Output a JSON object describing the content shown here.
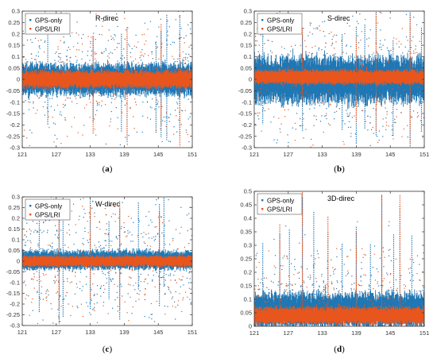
{
  "colors": {
    "gps_only": "#1f77b4",
    "gps_lri": "#e8561e",
    "axis": "#333333",
    "grid": "#d9d9d9"
  },
  "chart_data": [
    {
      "type": "scatter",
      "panel": "a",
      "caption": "(a)",
      "annotation": "R-direc",
      "legend": [
        "GPS-only",
        "GPS/LRI"
      ],
      "legend_position": "top-left",
      "xlim": [
        121,
        151
      ],
      "ylim": [
        -0.3,
        0.3
      ],
      "x_ticks": [
        121,
        127,
        133,
        139,
        145,
        151
      ],
      "y_ticks": [
        -0.3,
        -0.25,
        -0.2,
        -0.15,
        -0.1,
        -0.05,
        0,
        0.05,
        0.1,
        0.15,
        0.2,
        0.25,
        0.3
      ],
      "grid": false,
      "series": [
        {
          "name": "GPS-only",
          "center": 0.0,
          "band": 0.055
        },
        {
          "name": "GPS/LRI",
          "center": 0.0,
          "band": 0.03
        }
      ],
      "spikes_x": [
        125.5,
        133.5,
        138.5,
        139.5,
        144.6,
        145.5,
        146.5,
        148.8
      ]
    },
    {
      "type": "scatter",
      "panel": "b",
      "caption": "(b)",
      "annotation": "S-direc",
      "legend": [
        "GPS-only",
        "GPS/LRI"
      ],
      "legend_position": "top-left",
      "xlim": [
        121,
        151
      ],
      "ylim": [
        -0.3,
        0.3
      ],
      "x_ticks": [
        121,
        127,
        133,
        139,
        145,
        151
      ],
      "y_ticks": [
        -0.3,
        -0.25,
        -0.2,
        -0.15,
        -0.1,
        -0.05,
        0,
        0.05,
        0.1,
        0.15,
        0.2,
        0.25,
        0.3
      ],
      "grid": false,
      "series": [
        {
          "name": "GPS-only",
          "center": 0.0,
          "band": 0.08
        },
        {
          "name": "GPS/LRI",
          "center": 0.01,
          "band": 0.025
        }
      ],
      "spikes_x": [
        122.5,
        129.5,
        136.5,
        139.0,
        140.5,
        142.5,
        145.5,
        148.5,
        150.5
      ]
    },
    {
      "type": "scatter",
      "panel": "c",
      "caption": "(c)",
      "annotation": "W-direc",
      "legend": [
        "GPS-only",
        "GPS/LRI"
      ],
      "legend_position": "top-left",
      "xlim": [
        121,
        151
      ],
      "ylim": [
        -0.3,
        0.3
      ],
      "x_ticks": [
        121,
        127,
        133,
        139,
        145,
        151
      ],
      "y_ticks": [
        -0.3,
        -0.25,
        -0.2,
        -0.15,
        -0.1,
        -0.05,
        0,
        0.05,
        0.1,
        0.15,
        0.2,
        0.25,
        0.3
      ],
      "grid": false,
      "series": [
        {
          "name": "GPS-only",
          "center": 0.005,
          "band": 0.035
        },
        {
          "name": "GPS/LRI",
          "center": 0.0,
          "band": 0.02
        }
      ],
      "spikes_x": [
        124.0,
        127.5,
        128.2,
        133.0,
        136.3,
        138.2,
        141.5,
        145.2,
        146.0
      ]
    },
    {
      "type": "scatter",
      "panel": "d",
      "caption": "(d)",
      "annotation": "3D-direc",
      "legend": [
        "GPS-only",
        "GPS/LRI"
      ],
      "legend_position": "top-left",
      "xlim": [
        121,
        151
      ],
      "ylim": [
        0,
        0.5
      ],
      "x_ticks": [
        121,
        127,
        133,
        139,
        145,
        151
      ],
      "y_ticks": [
        0,
        0.05,
        0.1,
        0.15,
        0.2,
        0.25,
        0.3,
        0.35,
        0.4,
        0.45,
        0.5
      ],
      "grid": false,
      "series": [
        {
          "name": "GPS-only",
          "center": 0.06,
          "band": 0.05
        },
        {
          "name": "GPS/LRI",
          "center": 0.04,
          "band": 0.025
        }
      ],
      "spikes_x": [
        122.5,
        125.5,
        127.2,
        129.5,
        131.5,
        134.0,
        136.5,
        139.0,
        141.5,
        143.5,
        145.6,
        146.7,
        148.8
      ]
    }
  ]
}
